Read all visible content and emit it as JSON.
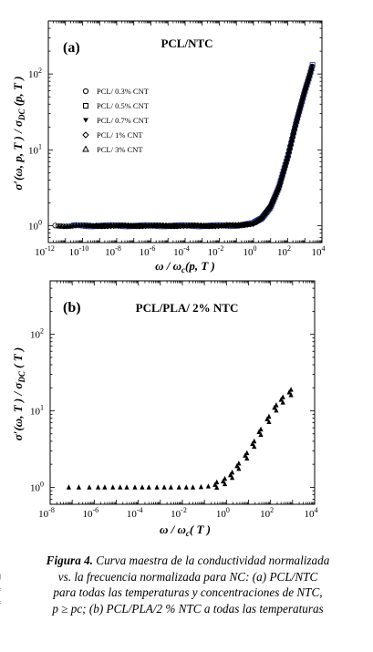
{
  "colors": {
    "marker": "#000000",
    "overlap_series": "#2b3a8f",
    "frame": "#000000"
  },
  "chart_data": [
    {
      "type": "scatter",
      "panel_label": "(a)",
      "title": "PCL/NTC",
      "ylabel": "σ′(ω, p, T ) / σ_DC (p, T )",
      "ylabel_parts": {
        "sigma": "σ′(ω, p, T ) / σ",
        "sub": "DC",
        "tail": " (p, T )"
      },
      "xlabel": "ω / ω_c(p, T )",
      "xlabel_parts": {
        "omega1": "ω / ω",
        "sub": "c",
        "tail": "(p, T )"
      },
      "x_scale": "log",
      "y_scale": "log",
      "xlim": [
        1e-12,
        10000.0
      ],
      "ylim": [
        0.6,
        500
      ],
      "x_tick_exponents": [
        "-12",
        "-10",
        "-8",
        "-6",
        "-4",
        "-2",
        "0",
        "2",
        "4"
      ],
      "y_tick_exponents": [
        "0",
        "1",
        "2"
      ],
      "grid": false,
      "legend_position": "left, middle",
      "series": [
        {
          "name": "PCL/ 0.3% CNT",
          "marker": "circle"
        },
        {
          "name": "PCL/ 0.5% CNT",
          "marker": "square"
        },
        {
          "name": "PCL/ 0.7% CNT",
          "marker": "triangle-down"
        },
        {
          "name": "PCL/ 1% CNT",
          "marker": "diamond"
        },
        {
          "name": "PCL/ 3% CNT",
          "marker": "triangle-up"
        }
      ],
      "master_curve": [
        [
          1e-12,
          1.0
        ],
        [
          1e-10,
          1.0
        ],
        [
          1e-08,
          1.0
        ],
        [
          1e-06,
          1.0
        ],
        [
          0.0001,
          1.0
        ],
        [
          0.01,
          1.0
        ],
        [
          0.1,
          1.01
        ],
        [
          1,
          1.07
        ],
        [
          3,
          1.25
        ],
        [
          10,
          1.8
        ],
        [
          30,
          3.2
        ],
        [
          100,
          8
        ],
        [
          300,
          22
        ],
        [
          1000,
          60
        ],
        [
          2000,
          100
        ],
        [
          3000,
          140
        ]
      ]
    },
    {
      "type": "scatter",
      "panel_label": "(b)",
      "title": "PCL/PLA/ 2% NTC",
      "ylabel": "σ′(ω, T ) / σ_DC ( T )",
      "ylabel_parts": {
        "sigma": "σ′(ω, T ) / σ",
        "sub": "DC",
        "tail": " ( T )"
      },
      "xlabel": "ω / ω_c( T )",
      "xlabel_parts": {
        "omega1": "ω / ω",
        "sub": "c",
        "tail": "( T )"
      },
      "x_scale": "log",
      "y_scale": "log",
      "xlim": [
        1e-08,
        10000.0
      ],
      "ylim": [
        0.6,
        500
      ],
      "x_tick_exponents": [
        "-8",
        "-6",
        "-4",
        "-2",
        "0",
        "2",
        "4"
      ],
      "y_tick_exponents": [
        "0",
        "1",
        "2"
      ],
      "grid": false,
      "series": [
        {
          "marker": "triangle-up",
          "x": [
            7e-08,
            2e-07,
            6e-07,
            1.5e-06,
            3e-06,
            7e-06,
            1.5e-05,
            3e-05,
            7e-05,
            0.00015,
            0.0003,
            0.0007,
            0.0015,
            0.003,
            0.007,
            0.015,
            0.03,
            0.07,
            0.15,
            0.3,
            0.7,
            1.5,
            3,
            7,
            15,
            30,
            70,
            150,
            300,
            700
          ],
          "y": [
            1,
            1,
            1,
            1,
            1,
            1,
            1,
            1,
            1,
            1,
            1,
            1,
            1,
            1,
            1,
            1,
            1,
            1.01,
            1.03,
            1.08,
            1.2,
            1.45,
            1.9,
            2.6,
            3.7,
            5.3,
            7.8,
            11,
            14,
            17.5
          ]
        }
      ]
    }
  ],
  "caption": {
    "label": "Figura 4.",
    "lines": [
      " Curva maestra de la conductividad normalizada",
      "vs. la frecuencia normalizada para NC: (a) PCL/NTC",
      "para todas las temperaturas y concentraciones de NTC,",
      "p ≥ pc;  (b) PCL/PLA/2 % NTC a todas las temperaturas"
    ]
  }
}
